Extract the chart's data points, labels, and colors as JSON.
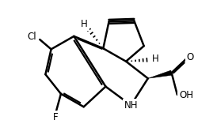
{
  "bg": "#ffffff",
  "lc": "#000000",
  "lw": 1.8,
  "fs": 8.5,
  "figsize": [
    2.74,
    1.76
  ],
  "dpi": 100,
  "xlim": [
    -1.4,
    3.5
  ],
  "ylim": [
    -2.0,
    1.4
  ]
}
